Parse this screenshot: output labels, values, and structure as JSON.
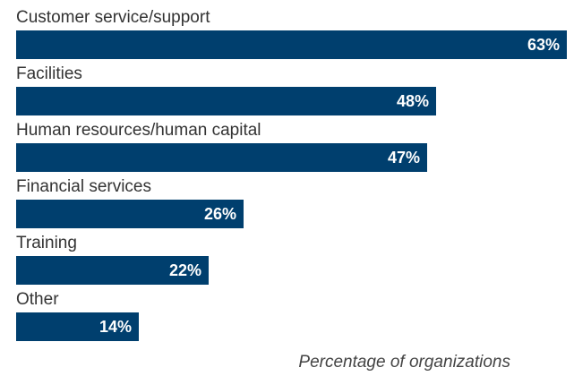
{
  "chart_data": {
    "type": "bar",
    "orientation": "horizontal",
    "categories": [
      "Customer service/support",
      "Facilities",
      "Human resources/human capital",
      "Financial services",
      "Training",
      "Other"
    ],
    "values": [
      63,
      48,
      47,
      26,
      22,
      14
    ],
    "value_labels": [
      "63%",
      "48%",
      "47%",
      "26%",
      "22%",
      "14%"
    ],
    "title": "",
    "xlabel": "Percentage of organizations",
    "ylabel": "",
    "xlim": [
      0,
      63
    ],
    "grid": false,
    "bar_color": "#003f6e",
    "value_label_color": "#ffffff",
    "text_color": "#333333"
  }
}
